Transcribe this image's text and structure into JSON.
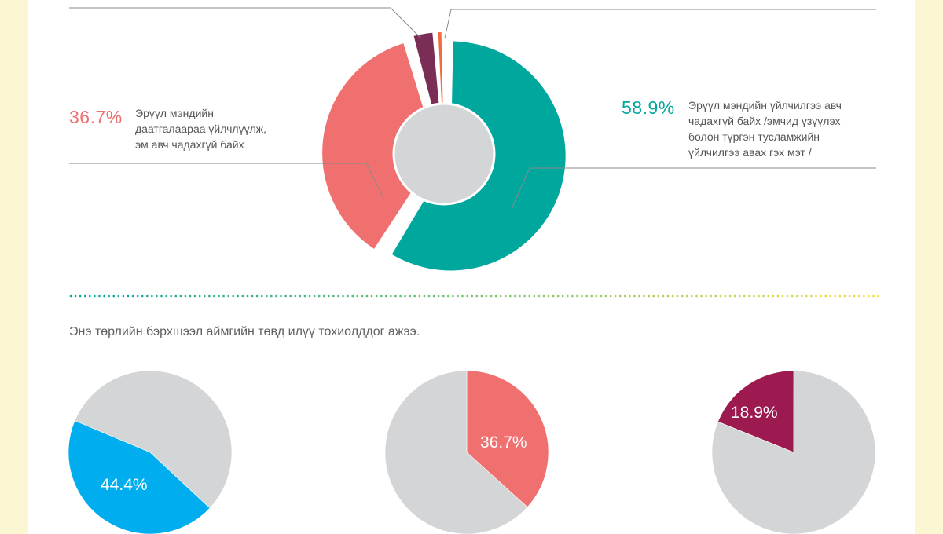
{
  "colors": {
    "background": "#fbf7d2",
    "teal": "#00a79d",
    "coral": "#f07070",
    "plum": "#7a2e55",
    "orange": "#f26b3a",
    "gray": "#d4d5d7",
    "blue": "#00aeef",
    "crimson": "#9c1a4f",
    "leader": "#8a8a8a"
  },
  "chart_data": [
    {
      "type": "pie",
      "variant": "donut",
      "slices": [
        {
          "value": 58.9,
          "color_key": "teal",
          "pct_label": "58.9%",
          "label": "Эрүүл мэндийн үйлчилгээ авч чадахгүй байх /эмчид үзүүлэх болон түргэн тусламжийн үйлчилгээ авах гэх мэт /",
          "label_lines": [
            "Эрүүл мэндийн үйлчилгээ авч",
            "чадахгүй байх /эмчид үзүүлэх",
            "болон түргэн тусламжийн",
            "үйлчилгээ авах гэх мэт /"
          ]
        },
        {
          "value": 36.7,
          "color_key": "coral",
          "pct_label": "36.7%",
          "label": "Эрүүл мэндийн даатгалаараа үйлчлүүлж, эм авч чадахгүй байх",
          "label_lines": [
            "Эрүүл мэндийн",
            "даатгалаараа үйлчлүүлж,",
            "эм авч чадахгүй байх"
          ]
        },
        {
          "value": 3.3,
          "color_key": "plum"
        },
        {
          "value": 1.1,
          "color_key": "orange"
        }
      ]
    },
    {
      "type": "pie",
      "slices": [
        {
          "value": 44.4,
          "label": "44.4%",
          "color_key": "blue"
        },
        {
          "value": 55.6,
          "color_key": "gray"
        }
      ]
    },
    {
      "type": "pie",
      "slices": [
        {
          "value": 36.7,
          "label": "36.7%",
          "color_key": "coral"
        },
        {
          "value": 63.3,
          "color_key": "gray"
        }
      ]
    },
    {
      "type": "pie",
      "slices": [
        {
          "value": 18.9,
          "label": "18.9%",
          "color_key": "crimson"
        },
        {
          "value": 81.1,
          "color_key": "gray"
        }
      ]
    }
  ],
  "question": "Энэ төрлийн бэрхшээл аймгийн төвд илүү тохиолддог ажээ."
}
